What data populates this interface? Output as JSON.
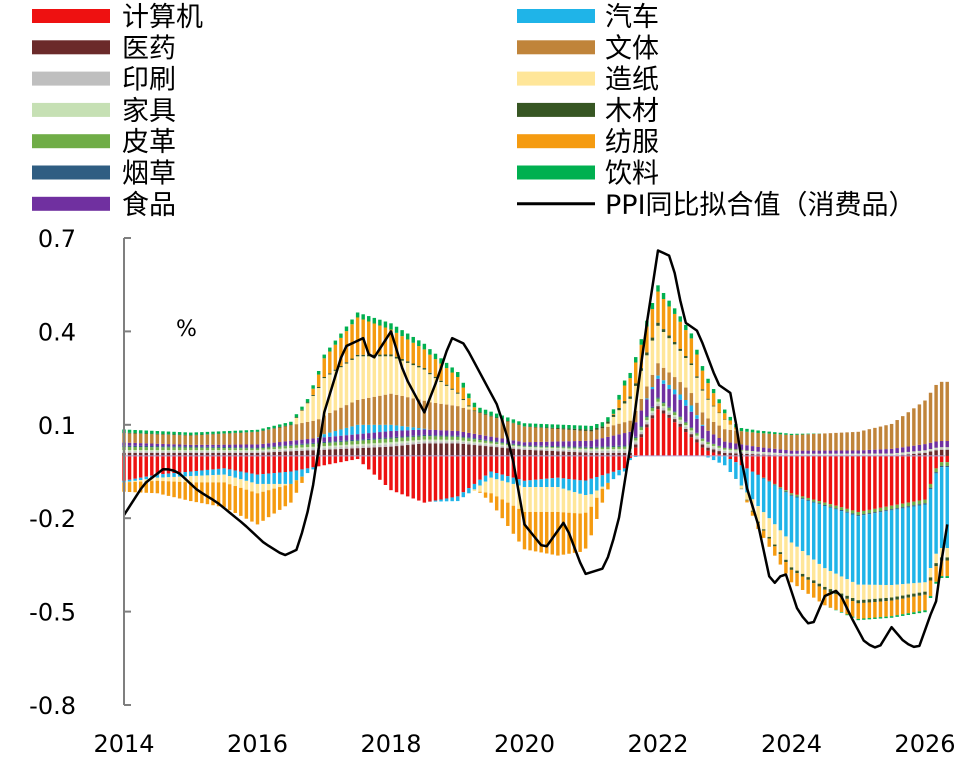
{
  "chart_data": {
    "type": "bar",
    "subtype": "stacked-bar-with-line",
    "unit": "%",
    "x_ticks": [
      "2014",
      "2016",
      "2018",
      "2020",
      "2022",
      "2024",
      "2026"
    ],
    "y_ticks": [
      "0.7",
      "0.4",
      "0.1",
      "-0.2",
      "-0.5",
      "-0.8"
    ],
    "ylim": [
      -0.8,
      0.7
    ],
    "xlim": [
      2014,
      2026.3
    ],
    "legend_position": "top",
    "grid": false,
    "series": [
      {
        "name": "计算机",
        "color": "#ee1111",
        "key_points": [
          [
            2014,
            -0.08
          ],
          [
            2014.5,
            -0.06
          ],
          [
            2015,
            -0.05
          ],
          [
            2015.5,
            -0.04
          ],
          [
            2016,
            -0.06
          ],
          [
            2016.5,
            -0.05
          ],
          [
            2017,
            -0.03
          ],
          [
            2017.5,
            -0.01
          ],
          [
            2018,
            -0.11
          ],
          [
            2018.5,
            -0.15
          ],
          [
            2019,
            -0.13
          ],
          [
            2019.5,
            -0.05
          ],
          [
            2020,
            -0.08
          ],
          [
            2020.5,
            -0.07
          ],
          [
            2020.9,
            -0.08
          ],
          [
            2021.5,
            -0.04
          ],
          [
            2021.8,
            0.08
          ],
          [
            2022,
            0.15
          ],
          [
            2022.3,
            0.1
          ],
          [
            2022.7,
            0.02
          ],
          [
            2023,
            0.0
          ],
          [
            2023.5,
            -0.06
          ],
          [
            2024,
            -0.12
          ],
          [
            2024.5,
            -0.15
          ],
          [
            2025,
            -0.18
          ],
          [
            2025.5,
            -0.16
          ],
          [
            2026,
            -0.14
          ],
          [
            2026.2,
            -0.02
          ]
        ]
      },
      {
        "name": "医药",
        "color": "#6b2a2a",
        "key_points": [
          [
            2014,
            0.01
          ],
          [
            2015,
            0.01
          ],
          [
            2016,
            0.01
          ],
          [
            2017,
            0.02
          ],
          [
            2018,
            0.03
          ],
          [
            2018.5,
            0.04
          ],
          [
            2019,
            0.04
          ],
          [
            2019.5,
            0.03
          ],
          [
            2020,
            0.02
          ],
          [
            2021,
            0.01
          ],
          [
            2022,
            0.01
          ],
          [
            2023,
            0.01
          ],
          [
            2024,
            0.0
          ],
          [
            2025,
            0.0
          ],
          [
            2025.5,
            0.0
          ],
          [
            2026,
            0.01
          ],
          [
            2026.2,
            0.02
          ]
        ]
      },
      {
        "name": "印刷",
        "color": "#bfbfbf",
        "key_points": [
          [
            2014,
            0.005
          ],
          [
            2016,
            0.005
          ],
          [
            2018,
            0.008
          ],
          [
            2020,
            0.005
          ],
          [
            2022,
            0.008
          ],
          [
            2024,
            0.004
          ],
          [
            2026,
            0.004
          ]
        ]
      },
      {
        "name": "家具",
        "color": "#c6e0b4",
        "key_points": [
          [
            2014,
            0.004
          ],
          [
            2016,
            0.004
          ],
          [
            2018,
            0.006
          ],
          [
            2020,
            0.004
          ],
          [
            2022,
            0.006
          ],
          [
            2024,
            0.003
          ],
          [
            2026,
            0.004
          ]
        ]
      },
      {
        "name": "皮革",
        "color": "#70ad47",
        "key_points": [
          [
            2014,
            0.01
          ],
          [
            2015,
            0.008
          ],
          [
            2016,
            0.005
          ],
          [
            2017,
            0.01
          ],
          [
            2018,
            0.012
          ],
          [
            2019,
            0.01
          ],
          [
            2020,
            0.002
          ],
          [
            2021,
            0.004
          ],
          [
            2022,
            0.01
          ],
          [
            2023,
            0.005
          ],
          [
            2024,
            -0.005
          ],
          [
            2025,
            -0.01
          ],
          [
            2026,
            -0.012
          ]
        ]
      },
      {
        "name": "烟草",
        "color": "#2f5d82",
        "key_points": [
          [
            2014,
            0.004
          ],
          [
            2016,
            0.003
          ],
          [
            2018,
            0.004
          ],
          [
            2020,
            0.003
          ],
          [
            2022,
            0.004
          ],
          [
            2024,
            -0.003
          ],
          [
            2026,
            -0.004
          ]
        ]
      },
      {
        "name": "食品",
        "color": "#7030a0",
        "key_points": [
          [
            2014,
            0.01
          ],
          [
            2015,
            0.005
          ],
          [
            2016,
            0.01
          ],
          [
            2017,
            0.015
          ],
          [
            2018,
            0.02
          ],
          [
            2019,
            0.015
          ],
          [
            2020,
            0.01
          ],
          [
            2021,
            0.02
          ],
          [
            2022,
            0.06
          ],
          [
            2022.5,
            0.05
          ],
          [
            2023,
            0.02
          ],
          [
            2024,
            0.01
          ],
          [
            2025,
            0.01
          ],
          [
            2026,
            0.02
          ]
        ]
      },
      {
        "name": "汽车",
        "color": "#1fb4e8",
        "key_points": [
          [
            2014,
            -0.005
          ],
          [
            2014.5,
            -0.01
          ],
          [
            2015,
            -0.015
          ],
          [
            2015.5,
            -0.02
          ],
          [
            2016,
            -0.03
          ],
          [
            2016.5,
            -0.04
          ],
          [
            2017,
            0.01
          ],
          [
            2017.5,
            0.03
          ],
          [
            2018,
            0.02
          ],
          [
            2019,
            -0.015
          ],
          [
            2019.5,
            -0.02
          ],
          [
            2020,
            -0.02
          ],
          [
            2020.5,
            -0.03
          ],
          [
            2021,
            -0.05
          ],
          [
            2021.5,
            -0.01
          ],
          [
            2022,
            0.01
          ],
          [
            2022.5,
            0.02
          ],
          [
            2023,
            -0.03
          ],
          [
            2023.5,
            -0.1
          ],
          [
            2024,
            -0.15
          ],
          [
            2024.5,
            -0.2
          ],
          [
            2025,
            -0.22
          ],
          [
            2025.5,
            -0.24
          ],
          [
            2026,
            -0.25
          ],
          [
            2026.2,
            -0.26
          ]
        ]
      },
      {
        "name": "文体",
        "color": "#c0843a",
        "key_points": [
          [
            2014,
            0.03
          ],
          [
            2015,
            0.03
          ],
          [
            2016,
            0.04
          ],
          [
            2017,
            0.06
          ],
          [
            2018,
            0.1
          ],
          [
            2019,
            0.08
          ],
          [
            2020,
            0.05
          ],
          [
            2021,
            0.03
          ],
          [
            2022,
            0.04
          ],
          [
            2023,
            0.04
          ],
          [
            2024,
            0.05
          ],
          [
            2025,
            0.06
          ],
          [
            2025.5,
            0.08
          ],
          [
            2026,
            0.14
          ],
          [
            2026.2,
            0.19
          ]
        ]
      },
      {
        "name": "造纸",
        "color": "#ffe699",
        "key_points": [
          [
            2014,
            0.0
          ],
          [
            2015,
            -0.02
          ],
          [
            2016,
            -0.03
          ],
          [
            2016.5,
            0.0
          ],
          [
            2017,
            0.12
          ],
          [
            2017.5,
            0.14
          ],
          [
            2018,
            0.12
          ],
          [
            2018.5,
            0.1
          ],
          [
            2019,
            0.04
          ],
          [
            2019.5,
            -0.05
          ],
          [
            2020,
            -0.08
          ],
          [
            2020.5,
            -0.08
          ],
          [
            2020.9,
            -0.06
          ],
          [
            2021.5,
            0.06
          ],
          [
            2022,
            0.12
          ],
          [
            2022.5,
            0.09
          ],
          [
            2023,
            0.03
          ],
          [
            2023.5,
            -0.05
          ],
          [
            2024,
            -0.08
          ],
          [
            2024.5,
            -0.06
          ],
          [
            2025,
            -0.05
          ],
          [
            2025.5,
            -0.04
          ],
          [
            2026,
            -0.03
          ]
        ]
      },
      {
        "name": "木材",
        "color": "#375623",
        "key_points": [
          [
            2014,
            0.002
          ],
          [
            2016,
            0.001
          ],
          [
            2018,
            0.006
          ],
          [
            2020,
            0.001
          ],
          [
            2022,
            0.01
          ],
          [
            2024,
            -0.008
          ],
          [
            2025,
            -0.01
          ],
          [
            2026,
            -0.01
          ]
        ]
      },
      {
        "name": "纺服",
        "color": "#f59b10",
        "key_points": [
          [
            2014,
            -0.03
          ],
          [
            2014.5,
            -0.04
          ],
          [
            2015,
            -0.06
          ],
          [
            2015.5,
            -0.08
          ],
          [
            2016,
            -0.1
          ],
          [
            2016.5,
            -0.06
          ],
          [
            2017,
            0.06
          ],
          [
            2017.5,
            0.12
          ],
          [
            2018,
            0.08
          ],
          [
            2018.5,
            0.06
          ],
          [
            2019,
            0.05
          ],
          [
            2019.5,
            -0.03
          ],
          [
            2020,
            -0.12
          ],
          [
            2020.5,
            -0.14
          ],
          [
            2020.9,
            -0.12
          ],
          [
            2021.5,
            0.05
          ],
          [
            2022,
            0.1
          ],
          [
            2022.5,
            0.08
          ],
          [
            2023,
            0.02
          ],
          [
            2023.5,
            -0.02
          ],
          [
            2024,
            -0.04
          ],
          [
            2024.5,
            -0.05
          ],
          [
            2025,
            -0.05
          ],
          [
            2025.5,
            -0.05
          ],
          [
            2026,
            -0.05
          ]
        ]
      },
      {
        "name": "饮料",
        "color": "#00b050",
        "key_points": [
          [
            2014,
            0.01
          ],
          [
            2015,
            0.008
          ],
          [
            2016,
            0.006
          ],
          [
            2017,
            0.012
          ],
          [
            2018,
            0.02
          ],
          [
            2019,
            0.016
          ],
          [
            2020,
            0.01
          ],
          [
            2021,
            0.012
          ],
          [
            2022,
            0.02
          ],
          [
            2023,
            0.012
          ],
          [
            2024,
            0.004
          ],
          [
            2025,
            -0.004
          ],
          [
            2026,
            -0.006
          ]
        ]
      }
    ],
    "line_series": {
      "name": "PPI同比拟合值（消费品）",
      "color": "#000000",
      "key_points": [
        [
          2014,
          -0.19
        ],
        [
          2014.3,
          -0.09
        ],
        [
          2014.6,
          -0.04
        ],
        [
          2014.8,
          -0.05
        ],
        [
          2015.1,
          -0.11
        ],
        [
          2015.4,
          -0.15
        ],
        [
          2015.8,
          -0.22
        ],
        [
          2016.1,
          -0.28
        ],
        [
          2016.4,
          -0.32
        ],
        [
          2016.6,
          -0.3
        ],
        [
          2016.8,
          -0.14
        ],
        [
          2017.0,
          0.14
        ],
        [
          2017.3,
          0.35
        ],
        [
          2017.6,
          0.38
        ],
        [
          2017.7,
          0.3
        ],
        [
          2018.0,
          0.4
        ],
        [
          2018.2,
          0.26
        ],
        [
          2018.5,
          0.14
        ],
        [
          2018.7,
          0.25
        ],
        [
          2018.9,
          0.38
        ],
        [
          2019.1,
          0.36
        ],
        [
          2019.3,
          0.28
        ],
        [
          2019.6,
          0.16
        ],
        [
          2019.8,
          0.02
        ],
        [
          2020.0,
          -0.22
        ],
        [
          2020.3,
          -0.3
        ],
        [
          2020.6,
          -0.21
        ],
        [
          2020.9,
          -0.38
        ],
        [
          2021.2,
          -0.36
        ],
        [
          2021.4,
          -0.22
        ],
        [
          2021.6,
          0.05
        ],
        [
          2021.8,
          0.38
        ],
        [
          2022.0,
          0.66
        ],
        [
          2022.2,
          0.64
        ],
        [
          2022.4,
          0.43
        ],
        [
          2022.6,
          0.4
        ],
        [
          2022.9,
          0.23
        ],
        [
          2023.1,
          0.2
        ],
        [
          2023.3,
          -0.08
        ],
        [
          2023.5,
          -0.22
        ],
        [
          2023.7,
          -0.42
        ],
        [
          2023.9,
          -0.37
        ],
        [
          2024.1,
          -0.5
        ],
        [
          2024.3,
          -0.55
        ],
        [
          2024.5,
          -0.45
        ],
        [
          2024.7,
          -0.43
        ],
        [
          2024.9,
          -0.52
        ],
        [
          2025.1,
          -0.6
        ],
        [
          2025.3,
          -0.62
        ],
        [
          2025.5,
          -0.55
        ],
        [
          2025.7,
          -0.6
        ],
        [
          2025.9,
          -0.62
        ],
        [
          2026.1,
          -0.5
        ],
        [
          2026.2,
          -0.45
        ],
        [
          2026.3,
          -0.22
        ]
      ]
    }
  }
}
